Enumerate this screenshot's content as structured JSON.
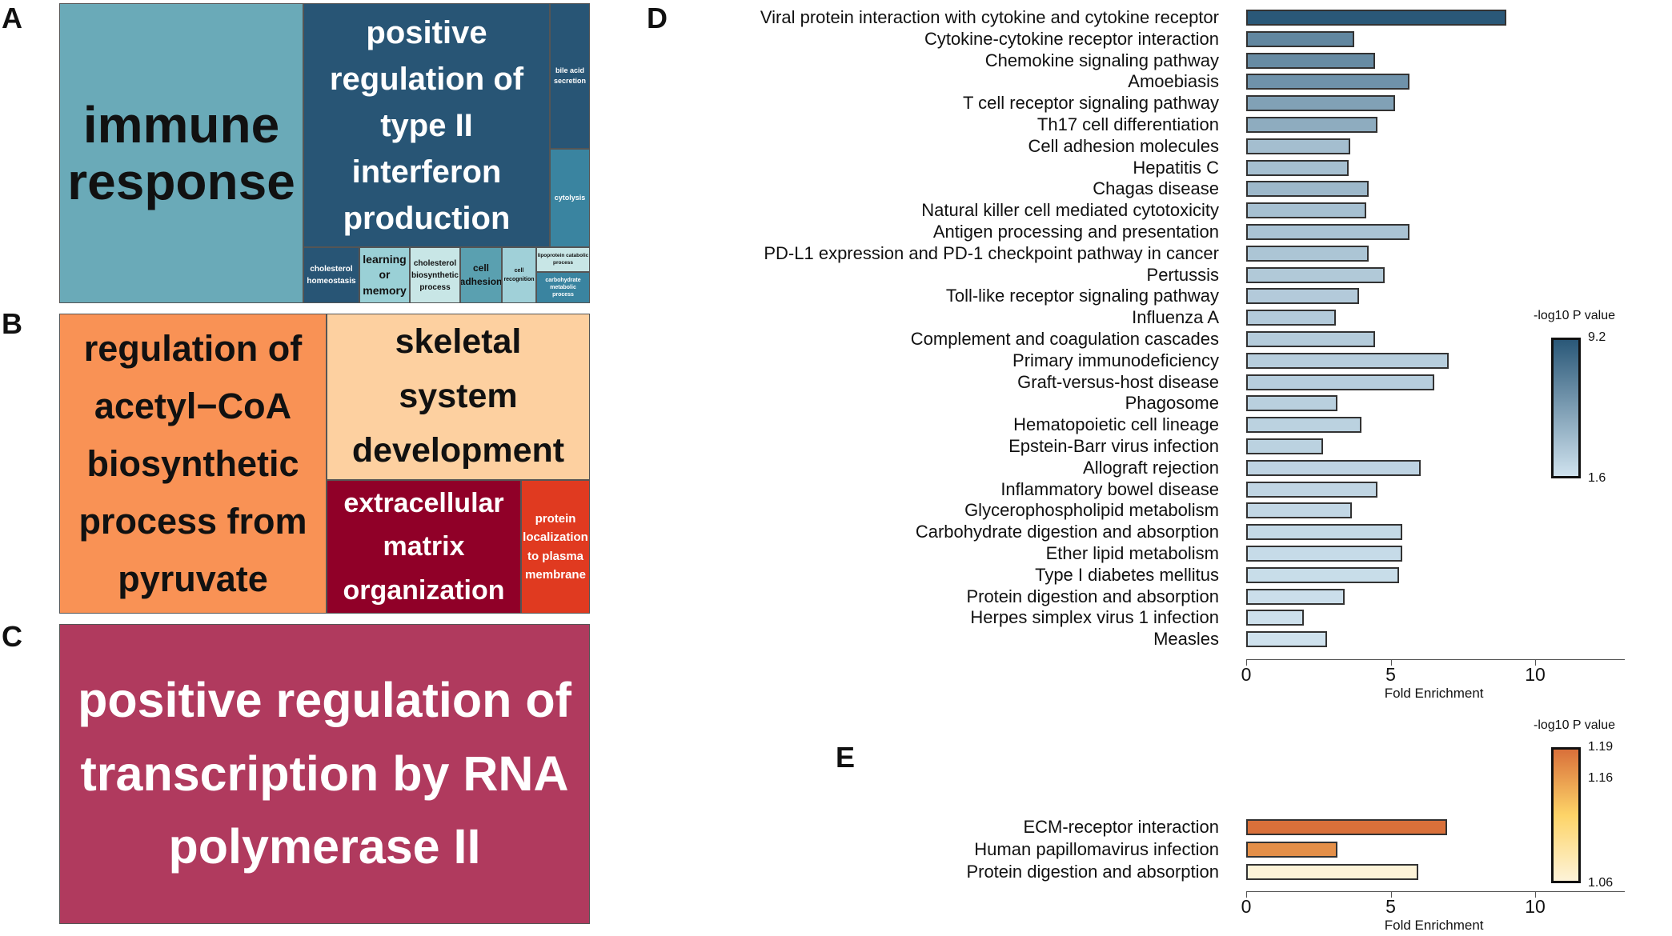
{
  "panel_labels": {
    "a": "A",
    "b": "B",
    "c": "C",
    "d": "D",
    "e": "E"
  },
  "treemap_a": {
    "tiles": [
      {
        "label": "immune response",
        "color": "#6aaab8",
        "text_color": "#111111"
      },
      {
        "label": "positive regulation of type II interferon production",
        "color": "#285575",
        "text_color": "#ffffff"
      },
      {
        "label": "bile acid secretion",
        "color": "#285575",
        "text_color": "#ffffff"
      },
      {
        "label": "cytolysis",
        "color": "#3a84a0",
        "text_color": "#ffffff"
      },
      {
        "label": "cholesterol homeostasis",
        "color": "#285575",
        "text_color": "#ffffff"
      },
      {
        "label": "learning or memory",
        "color": "#9ad0d6",
        "text_color": "#111111"
      },
      {
        "label": "cholesterol biosynthetic process",
        "color": "#c8e6e6",
        "text_color": "#111111"
      },
      {
        "label": "cell adhesion",
        "color": "#5aa0b0",
        "text_color": "#111111"
      },
      {
        "label": "cell recognition",
        "color": "#a0d0d8",
        "text_color": "#111111"
      },
      {
        "label": "lipoprotein catabolic process",
        "color": "#c8e6e6",
        "text_color": "#111111"
      },
      {
        "label": "carbohydrate metabolic process",
        "color": "#3a84a0",
        "text_color": "#ffffff"
      }
    ]
  },
  "treemap_b": {
    "tiles": [
      {
        "label": "regulation of acetyl−CoA biosynthetic process from pyruvate",
        "color": "#f99255",
        "text_color": "#111111"
      },
      {
        "label": "skeletal system development",
        "color": "#fdd0a0",
        "text_color": "#111111"
      },
      {
        "label": "extracellular matrix organization",
        "color": "#900028",
        "text_color": "#ffffff"
      },
      {
        "label": "protein localization to plasma membrane",
        "color": "#e03a20",
        "text_color": "#ffffff"
      }
    ]
  },
  "treemap_c": {
    "tiles": [
      {
        "label": "positive regulation of transcription by RNA polymerase II",
        "color": "#b03a5e",
        "text_color": "#ffffff"
      }
    ]
  },
  "chart_data": [
    {
      "type": "bar",
      "orientation": "horizontal",
      "xlabel": "Fold Enrichment",
      "xlim": [
        0,
        13
      ],
      "xticks": [
        0,
        5,
        10
      ],
      "color_legend": {
        "title": "-log10 P value",
        "min": 1.6,
        "max": 9.2,
        "labels": [
          "9.2",
          "1.6"
        ],
        "low_color": "#cfe2ee",
        "high_color": "#2a5878"
      },
      "categories": [
        "Viral protein interaction with cytokine and cytokine receptor",
        "Cytokine-cytokine receptor interaction",
        "Chemokine signaling pathway",
        "Amoebiasis",
        "T cell receptor signaling pathway",
        "Th17 cell differentiation",
        "Cell adhesion molecules",
        "Hepatitis C",
        "Chagas disease",
        "Natural killer cell mediated cytotoxicity",
        "Antigen processing and presentation",
        "PD-L1 expression and PD-1 checkpoint pathway in cancer",
        "Pertussis",
        "Toll-like receptor signaling pathway",
        "Influenza A",
        "Complement and coagulation cascades",
        "Primary immunodeficiency",
        "Graft-versus-host disease",
        "Phagosome",
        "Hematopoietic cell lineage",
        "Epstein-Barr virus infection",
        "Allograft rejection",
        "Inflammatory bowel disease",
        "Glycerophospholipid metabolism",
        "Carbohydrate digestion and absorption",
        "Ether lipid metabolism",
        "Type I diabetes mellitus",
        "Protein digestion and absorption",
        "Herpes simplex virus 1 infection",
        "Measles"
      ],
      "values": [
        9.0,
        3.75,
        4.45,
        5.65,
        5.15,
        4.55,
        3.6,
        3.55,
        4.25,
        4.15,
        5.65,
        4.25,
        4.8,
        3.9,
        3.1,
        4.45,
        7.0,
        6.5,
        3.15,
        4.0,
        2.65,
        6.05,
        4.55,
        3.65,
        5.4,
        5.4,
        5.3,
        3.4,
        2.0,
        2.8
      ],
      "neg_log10_p": [
        9.2,
        6.6,
        6.4,
        6.0,
        5.2,
        4.6,
        3.6,
        3.5,
        3.9,
        3.5,
        3.3,
        3.2,
        3.0,
        2.9,
        2.9,
        2.8,
        2.7,
        2.7,
        2.6,
        2.5,
        2.5,
        2.4,
        2.3,
        2.2,
        2.1,
        2.0,
        1.9,
        1.8,
        1.7,
        1.6
      ]
    },
    {
      "type": "bar",
      "orientation": "horizontal",
      "xlabel": "Fold Enrichment",
      "xlim": [
        0,
        13
      ],
      "xticks": [
        0,
        5,
        10
      ],
      "color_legend": {
        "title": "-log10 P value",
        "min": 1.06,
        "max": 1.19,
        "labels": [
          "1.19",
          "1.16",
          "1.06"
        ],
        "low_color": "#fdf3d8",
        "mid_color": "#fdd468",
        "high_color": "#d9703a"
      },
      "categories": [
        "ECM-receptor interaction",
        "Human papillomavirus infection",
        "Protein digestion and absorption"
      ],
      "values": [
        6.95,
        3.15,
        5.95
      ],
      "neg_log10_p": [
        1.19,
        1.17,
        1.06
      ]
    }
  ]
}
